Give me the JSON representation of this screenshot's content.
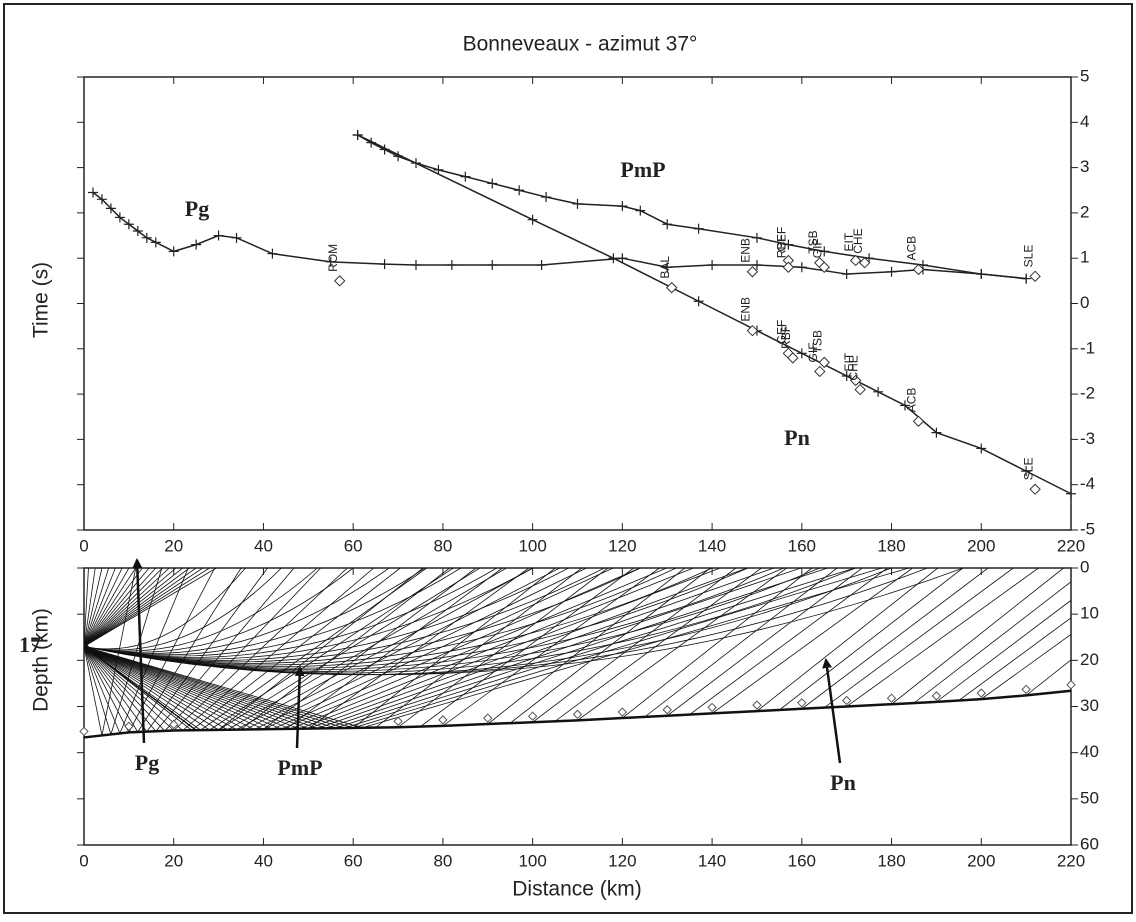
{
  "chart_data": [
    {
      "type": "line",
      "title": "Bonneveaux - azimut 37°",
      "ylabel": "Time (s)",
      "xlim": [
        0,
        220
      ],
      "xticks": [
        0,
        20,
        40,
        60,
        80,
        100,
        120,
        140,
        160,
        180,
        200,
        220
      ],
      "ylim": [
        -5,
        5
      ],
      "yticks": [
        -5,
        -4,
        -3,
        -2,
        -1,
        0,
        1,
        2,
        3,
        4,
        5
      ],
      "series": [
        {
          "name": "Pg",
          "color": "#222222",
          "x": [
            2,
            4,
            6,
            8,
            10,
            12,
            14,
            16,
            20,
            25,
            30,
            34,
            42,
            55,
            67,
            74,
            82,
            91,
            102,
            120,
            130,
            140,
            150,
            160,
            170,
            180,
            187,
            200,
            210
          ],
          "values": [
            2.45,
            2.3,
            2.1,
            1.9,
            1.75,
            1.6,
            1.45,
            1.35,
            1.15,
            1.3,
            1.5,
            1.45,
            1.1,
            0.92,
            0.87,
            0.85,
            0.85,
            0.85,
            0.85,
            1.0,
            0.8,
            0.85,
            0.85,
            0.8,
            0.65,
            0.7,
            0.75,
            0.65,
            0.55
          ]
        },
        {
          "name": "PmP",
          "color": "#222222",
          "x": [
            61,
            64,
            67,
            70,
            74,
            79,
            85,
            91,
            97,
            103,
            110,
            120,
            124,
            130,
            137,
            150,
            157,
            165,
            175,
            187,
            200,
            210
          ],
          "values": [
            3.72,
            3.55,
            3.4,
            3.25,
            3.1,
            2.95,
            2.8,
            2.65,
            2.5,
            2.35,
            2.2,
            2.15,
            2.05,
            1.75,
            1.65,
            1.45,
            1.3,
            1.15,
            1.0,
            0.85,
            0.65,
            0.55
          ]
        },
        {
          "name": "Pn",
          "color": "#222222",
          "x": [
            61,
            100,
            118,
            137,
            150,
            160,
            170,
            177,
            183,
            190,
            200,
            210,
            220
          ],
          "values": [
            3.72,
            1.85,
            1.0,
            0.05,
            -0.6,
            -1.1,
            -1.6,
            -1.95,
            -2.25,
            -2.85,
            -3.2,
            -3.7,
            -4.2
          ]
        }
      ],
      "stations": [
        {
          "name": "ROM",
          "x": 57,
          "t": 0.5
        },
        {
          "name": "BAL",
          "x": 131,
          "t": 0.35
        },
        {
          "name": "ENB",
          "x": 149,
          "t": 0.7
        },
        {
          "name": "GEF",
          "x": 157,
          "t": 0.95
        },
        {
          "name": "RBF",
          "x": 157,
          "t": 0.8
        },
        {
          "name": "TSB",
          "x": 164,
          "t": 0.9
        },
        {
          "name": "GIF",
          "x": 165,
          "t": 0.8
        },
        {
          "name": "EIT",
          "x": 172,
          "t": 0.95
        },
        {
          "name": "CHE",
          "x": 174,
          "t": 0.9
        },
        {
          "name": "ACB",
          "x": 186,
          "t": 0.75
        },
        {
          "name": "SLE",
          "x": 212,
          "t": 0.6
        },
        {
          "name": "ENB",
          "x": 149,
          "t": -0.6
        },
        {
          "name": "GEF",
          "x": 157,
          "t": -1.1
        },
        {
          "name": "RBF",
          "x": 158,
          "t": -1.2
        },
        {
          "name": "GIF",
          "x": 164,
          "t": -1.5
        },
        {
          "name": "TSB",
          "x": 165,
          "t": -1.3
        },
        {
          "name": "EIT",
          "x": 172,
          "t": -1.7
        },
        {
          "name": "CHE",
          "x": 173,
          "t": -1.9
        },
        {
          "name": "ACB",
          "x": 186,
          "t": -2.6
        },
        {
          "name": "SLE",
          "x": 212,
          "t": -4.1
        }
      ]
    },
    {
      "type": "ray",
      "xlabel": "Distance (km)",
      "ylabel": "Depth (km)",
      "xlim": [
        0,
        220
      ],
      "xticks": [
        0,
        20,
        40,
        60,
        80,
        100,
        120,
        140,
        160,
        180,
        200,
        220
      ],
      "ylim": [
        0,
        60
      ],
      "yticks": [
        0,
        10,
        20,
        30,
        40,
        50,
        60
      ],
      "inverted": true,
      "source_depth": 17,
      "moho": {
        "x": [
          0,
          10,
          20,
          70,
          80,
          90,
          100,
          110,
          120,
          130,
          140,
          150,
          160,
          170,
          180,
          190,
          200,
          210,
          220
        ],
        "depth": [
          36.7,
          35.6,
          35.2,
          34.5,
          34.2,
          33.8,
          33.4,
          33,
          32.5,
          32,
          31.5,
          31,
          30.5,
          30,
          29.5,
          29,
          28.4,
          27.6,
          26.6
        ]
      },
      "annotations": [
        "Pg",
        "PmP",
        "Pn"
      ]
    }
  ]
}
